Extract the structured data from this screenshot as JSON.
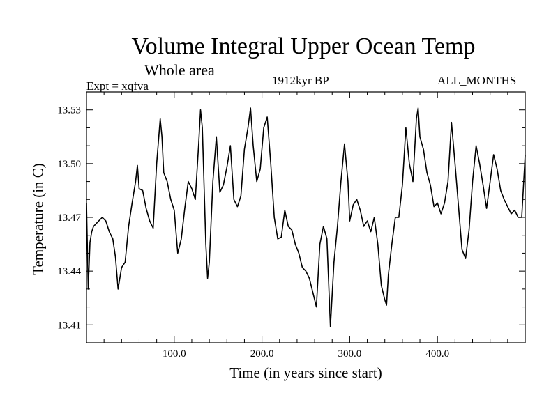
{
  "chart_data": {
    "type": "line",
    "title": "Volume Integral Upper Ocean Temp",
    "subtitle": "Whole area",
    "expt_label": "Expt = xqfva",
    "period_label": "1912kyr BP",
    "months_label": "ALL_MONTHS",
    "xlabel": "Time (in years since start)",
    "ylabel": "Temperature (in C)",
    "xlim": [
      0,
      500
    ],
    "ylim": [
      13.4,
      13.54
    ],
    "x_ticks": [
      100,
      200,
      300,
      400
    ],
    "x_tick_labels": [
      "100.0",
      "200.0",
      "300.0",
      "400.0"
    ],
    "y_ticks": [
      13.41,
      13.44,
      13.47,
      13.5,
      13.53
    ],
    "y_tick_labels": [
      "13.41",
      "13.44",
      "13.47",
      "13.50",
      "13.53"
    ],
    "grid": false,
    "series": [
      {
        "name": "Volume integral upper ocean temperature",
        "x": [
          0,
          2,
          4,
          6,
          8,
          10,
          14,
          18,
          22,
          26,
          30,
          33,
          36,
          40,
          44,
          48,
          52,
          56,
          58,
          60,
          64,
          68,
          72,
          76,
          80,
          84,
          86,
          88,
          92,
          96,
          100,
          104,
          108,
          112,
          116,
          120,
          124,
          128,
          130,
          132,
          136,
          138,
          140,
          144,
          148,
          152,
          156,
          160,
          164,
          168,
          172,
          176,
          180,
          184,
          187,
          190,
          194,
          198,
          202,
          206,
          210,
          214,
          218,
          222,
          226,
          230,
          234,
          238,
          242,
          246,
          250,
          254,
          258,
          262,
          266,
          270,
          274,
          278,
          282,
          286,
          290,
          294,
          298,
          300,
          304,
          308,
          312,
          316,
          320,
          324,
          328,
          332,
          336,
          340,
          342,
          344,
          348,
          352,
          356,
          360,
          364,
          368,
          372,
          376,
          378,
          380,
          384,
          388,
          392,
          396,
          400,
          404,
          408,
          412,
          416,
          420,
          424,
          428,
          432,
          436,
          440,
          444,
          448,
          452,
          456,
          460,
          464,
          468,
          472,
          476,
          480,
          484,
          488,
          492,
          496,
          500
        ],
        "y": [
          13.478,
          13.43,
          13.456,
          13.462,
          13.465,
          13.466,
          13.468,
          13.47,
          13.468,
          13.462,
          13.458,
          13.448,
          13.43,
          13.442,
          13.445,
          13.465,
          13.478,
          13.49,
          13.499,
          13.486,
          13.485,
          13.475,
          13.468,
          13.464,
          13.5,
          13.525,
          13.515,
          13.495,
          13.49,
          13.48,
          13.474,
          13.45,
          13.458,
          13.475,
          13.49,
          13.486,
          13.48,
          13.512,
          13.53,
          13.52,
          13.455,
          13.436,
          13.445,
          13.49,
          13.515,
          13.484,
          13.488,
          13.498,
          13.51,
          13.48,
          13.476,
          13.482,
          13.508,
          13.52,
          13.531,
          13.51,
          13.49,
          13.497,
          13.52,
          13.526,
          13.5,
          13.47,
          13.458,
          13.459,
          13.474,
          13.465,
          13.463,
          13.455,
          13.45,
          13.442,
          13.44,
          13.436,
          13.428,
          13.42,
          13.455,
          13.465,
          13.458,
          13.409,
          13.445,
          13.465,
          13.49,
          13.511,
          13.49,
          13.468,
          13.477,
          13.48,
          13.474,
          13.465,
          13.468,
          13.462,
          13.47,
          13.455,
          13.432,
          13.424,
          13.421,
          13.438,
          13.455,
          13.47,
          13.47,
          13.488,
          13.52,
          13.5,
          13.49,
          13.525,
          13.531,
          13.515,
          13.508,
          13.495,
          13.488,
          13.476,
          13.478,
          13.472,
          13.478,
          13.49,
          13.523,
          13.5,
          13.476,
          13.452,
          13.447,
          13.463,
          13.49,
          13.51,
          13.5,
          13.488,
          13.475,
          13.49,
          13.505,
          13.497,
          13.485,
          13.48,
          13.476,
          13.472,
          13.474,
          13.47,
          13.47,
          13.505
        ]
      }
    ]
  }
}
